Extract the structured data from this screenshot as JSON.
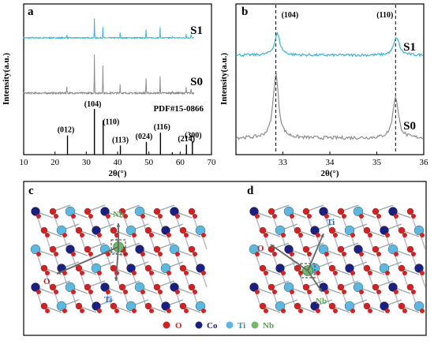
{
  "chart_data": [
    {
      "id": "a",
      "type": "line",
      "panel_label": "a",
      "xlabel": "2θ(°)",
      "ylabel": "Intensity(a.u.)",
      "xlim": [
        10,
        70
      ],
      "xticks": [
        10,
        20,
        30,
        40,
        50,
        60,
        70
      ],
      "reference_label": "PDF#15-0866",
      "colors": {
        "S1": "#3ab3d6",
        "S0": "#8c8c8c",
        "reference": "#000000"
      },
      "series": [
        {
          "name": "S1",
          "peaks": [
            [
              23.8,
              0.12
            ],
            [
              32.6,
              0.72
            ],
            [
              35.3,
              0.42
            ],
            [
              40.8,
              0.18
            ],
            [
              49.1,
              0.32
            ],
            [
              53.6,
              0.38
            ],
            [
              57.5,
              0.06
            ],
            [
              61.9,
              0.15
            ],
            [
              63.5,
              0.12
            ]
          ]
        },
        {
          "name": "S0",
          "peaks": [
            [
              23.8,
              0.18
            ],
            [
              32.6,
              1.0
            ],
            [
              35.3,
              0.72
            ],
            [
              40.8,
              0.22
            ],
            [
              49.1,
              0.38
            ],
            [
              53.6,
              0.42
            ],
            [
              57.5,
              0.07
            ],
            [
              61.9,
              0.15
            ],
            [
              63.5,
              0.12
            ]
          ]
        }
      ],
      "reference_peaks": [
        {
          "x": 24.0,
          "h": 0.42,
          "hkl": "(012)"
        },
        {
          "x": 32.6,
          "h": 1.0,
          "hkl": "(104)"
        },
        {
          "x": 35.4,
          "h": 0.75,
          "hkl": "(110)"
        },
        {
          "x": 40.9,
          "h": 0.2,
          "hkl": "(113)"
        },
        {
          "x": 49.2,
          "h": 0.28,
          "hkl": "(024)"
        },
        {
          "x": 53.7,
          "h": 0.48,
          "hkl": "(116)"
        },
        {
          "x": 57.5,
          "h": 0.05,
          "hkl": ""
        },
        {
          "x": 62.0,
          "h": 0.22,
          "hkl": "(214)"
        },
        {
          "x": 63.9,
          "h": 0.3,
          "hkl": "(300)"
        }
      ]
    },
    {
      "id": "b",
      "type": "line",
      "panel_label": "b",
      "xlabel": "2θ(°)",
      "ylabel": "Intensity(a.u.)",
      "xlim": [
        32,
        36
      ],
      "xticks": [
        33,
        34,
        35,
        36
      ],
      "colors": {
        "S1": "#3ab3d6",
        "S0": "#8c8c8c"
      },
      "dashed_lines": [
        {
          "x": 32.85,
          "label": "(104)"
        },
        {
          "x": 35.4,
          "label": "(110)"
        }
      ],
      "series": [
        {
          "name": "S1",
          "peaks": [
            [
              32.88,
              0.42
            ],
            [
              35.42,
              0.35
            ]
          ]
        },
        {
          "name": "S0",
          "peaks": [
            [
              32.85,
              0.95
            ],
            [
              35.4,
              0.62
            ]
          ]
        }
      ]
    }
  ],
  "structures": [
    {
      "panel_label": "c",
      "dopant": "Nb",
      "neighbors": [
        "O",
        "Ti"
      ]
    },
    {
      "panel_label": "d",
      "dopant": "Nb",
      "neighbors": [
        "Ti",
        "O"
      ]
    }
  ],
  "legend": {
    "items": [
      {
        "symbol": "O",
        "color": "#d42222"
      },
      {
        "symbol": "Co",
        "color": "#1b1f80"
      },
      {
        "symbol": "Ti",
        "color": "#5cb8e0"
      },
      {
        "symbol": "Nb",
        "color": "#72b86a"
      }
    ]
  }
}
